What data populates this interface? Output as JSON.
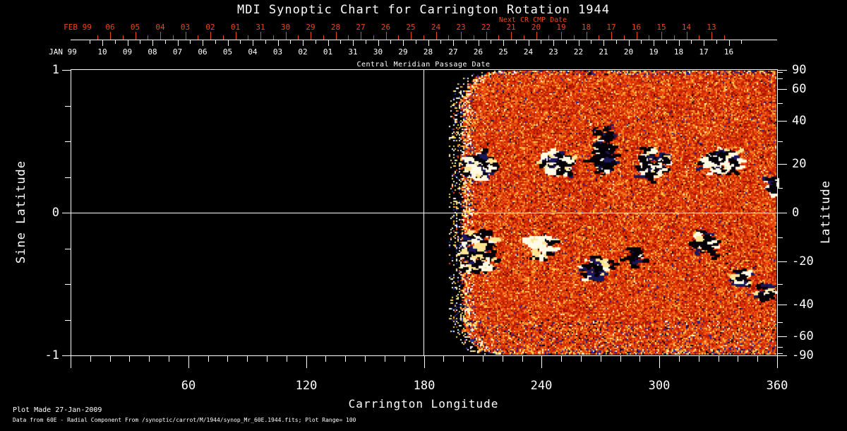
{
  "title": "MDI Synoptic Chart for Carrington Rotation 1944",
  "colors": {
    "background": "#000000",
    "foreground": "#ffffff",
    "next_cr": "#e8481c"
  },
  "top_axis": {
    "title": "Next CR CMP Date",
    "red_month_label": "FEB 99",
    "red_dates": [
      "06",
      "05",
      "04",
      "03",
      "02",
      "01",
      "31",
      "30",
      "29",
      "28",
      "27",
      "26",
      "25",
      "24",
      "23",
      "22",
      "21",
      "20",
      "19",
      "18",
      "17",
      "16",
      "15",
      "14",
      "13"
    ],
    "white_month_label": "JAN 99",
    "white_dates": [
      "10",
      "09",
      "08",
      "07",
      "06",
      "05",
      "04",
      "03",
      "02",
      "01",
      "31",
      "30",
      "29",
      "28",
      "27",
      "26",
      "25",
      "24",
      "23",
      "22",
      "21",
      "20",
      "19",
      "18",
      "17",
      "16"
    ],
    "label": "Central Meridian Passage Date"
  },
  "axes": {
    "xlabel": "Carrington Longitude",
    "x_major_labels": [
      "60",
      "120",
      "180",
      "240",
      "300",
      "360"
    ],
    "ylabel_left": "Sine Latitude",
    "left_labels": [
      {
        "v": 1,
        "t": "1"
      },
      {
        "v": 0,
        "t": "0"
      },
      {
        "v": -1,
        "t": "-1"
      }
    ],
    "ylabel_right": "Latitude",
    "right_labels": [
      {
        "v": 90,
        "t": "90"
      },
      {
        "v": 60,
        "t": "60"
      },
      {
        "v": 40,
        "t": "40"
      },
      {
        "v": 20,
        "t": "20"
      },
      {
        "v": 0,
        "t": "0"
      },
      {
        "v": -20,
        "t": "-20"
      },
      {
        "v": -40,
        "t": "-40"
      },
      {
        "v": -60,
        "t": "-60"
      },
      {
        "v": -90,
        "t": "-90"
      }
    ]
  },
  "footer": {
    "line1": "Plot Made 27-Jan-2009",
    "line2": "Data from 60E - Radial Component From /synoptic/carrot/M/1944/synop_Mr_60E.1944.fits; Plot Range=  100"
  },
  "chart_data": {
    "type": "heatmap",
    "title": "MDI Synoptic Chart for Carrington Rotation 1944",
    "xlabel": "Carrington Longitude",
    "ylabel_left": "Sine Latitude",
    "ylabel_right": "Latitude",
    "carrington_rotation": 1944,
    "x_range_deg": [
      0,
      360
    ],
    "sine_latitude_range": [
      -1,
      1
    ],
    "x_major_ticks_deg": [
      0,
      60,
      120,
      180,
      240,
      300,
      360
    ],
    "x_minor_step_deg": 10,
    "latitude_major_ticks_deg": [
      90,
      60,
      40,
      20,
      0,
      -20,
      -40,
      -60,
      -90
    ],
    "latitude_minor_ticks_deg": [
      80,
      70,
      50,
      30,
      10,
      -10,
      -30,
      -50,
      -70,
      -80
    ],
    "sine_lat_minor_ticks": [
      0.75,
      0.5,
      0.25,
      -0.25,
      -0.5,
      -0.75
    ],
    "data_coverage_deg": [
      198,
      360
    ],
    "plot_range_gauss": 100,
    "grid": {
      "vertical_line_lon_deg": 180,
      "horizontal_line_sine_lat": 0
    },
    "noise_palette": [
      [
        "#a81000",
        0.1
      ],
      [
        "#c52000",
        0.2
      ],
      [
        "#dd3404",
        0.22
      ],
      [
        "#ea4c0e",
        0.16
      ],
      [
        "#f26a1a",
        0.12
      ],
      [
        "#f88c2c",
        0.07
      ],
      [
        "#fbb13e",
        0.045
      ],
      [
        "#ffd95c",
        0.03
      ],
      [
        "#7c0a00",
        0.025
      ],
      [
        "#23239b",
        0.012
      ],
      [
        "#070310",
        0.009
      ],
      [
        "#fef4dc",
        0.005
      ]
    ],
    "fringe_palette": [
      [
        "#ffffff",
        0.28
      ],
      [
        "#ffe068",
        0.26
      ],
      [
        "#2a2fa2",
        0.16
      ],
      [
        "#0a0512",
        0.1
      ],
      [
        "#ea4c0e",
        0.1
      ],
      [
        "#ffd95c",
        0.1
      ]
    ],
    "polar_palette": [
      [
        "#ffd95c",
        0.2
      ],
      [
        "#ffffff",
        0.08
      ],
      [
        "#23239b",
        0.22
      ],
      [
        "#070310",
        0.15
      ],
      [
        "#dd3404",
        0.2
      ],
      [
        "#f26a1a",
        0.15
      ]
    ],
    "active_regions": [
      {
        "lon": 208,
        "sine_lat": 0.34,
        "w_deg": 16,
        "h_sine": 0.17,
        "dark_fraction": 0.55,
        "blobs": 95
      },
      {
        "lon": 247,
        "sine_lat": 0.35,
        "w_deg": 17,
        "h_sine": 0.18,
        "dark_fraction": 0.45,
        "blobs": 115
      },
      {
        "lon": 271,
        "sine_lat": 0.46,
        "w_deg": 9,
        "h_sine": 0.4,
        "dark_fraction": 0.78,
        "blobs": 85
      },
      {
        "lon": 296,
        "sine_lat": 0.36,
        "w_deg": 15,
        "h_sine": 0.2,
        "dark_fraction": 0.55,
        "blobs": 105
      },
      {
        "lon": 331,
        "sine_lat": 0.37,
        "w_deg": 20,
        "h_sine": 0.17,
        "dark_fraction": 0.45,
        "blobs": 115
      },
      {
        "lon": 357,
        "sine_lat": 0.2,
        "w_deg": 7,
        "h_sine": 0.12,
        "dark_fraction": 0.85,
        "blobs": 35
      },
      {
        "lon": 206,
        "sine_lat": -0.27,
        "w_deg": 20,
        "h_sine": 0.3,
        "dark_fraction": 0.6,
        "blobs": 150
      },
      {
        "lon": 239,
        "sine_lat": -0.23,
        "w_deg": 11,
        "h_sine": 0.16,
        "dark_fraction": 0.4,
        "blobs": 60
      },
      {
        "lon": 266,
        "sine_lat": -0.38,
        "w_deg": 15,
        "h_sine": 0.14,
        "dark_fraction": 0.75,
        "blobs": 60
      },
      {
        "lon": 287,
        "sine_lat": -0.3,
        "w_deg": 9,
        "h_sine": 0.1,
        "dark_fraction": 0.85,
        "blobs": 28
      },
      {
        "lon": 322,
        "sine_lat": -0.2,
        "w_deg": 13,
        "h_sine": 0.14,
        "dark_fraction": 0.7,
        "blobs": 55
      },
      {
        "lon": 341,
        "sine_lat": -0.45,
        "w_deg": 9,
        "h_sine": 0.11,
        "dark_fraction": 0.5,
        "blobs": 50
      },
      {
        "lon": 352,
        "sine_lat": -0.55,
        "w_deg": 9,
        "h_sine": 0.12,
        "dark_fraction": 0.8,
        "blobs": 35
      }
    ]
  }
}
